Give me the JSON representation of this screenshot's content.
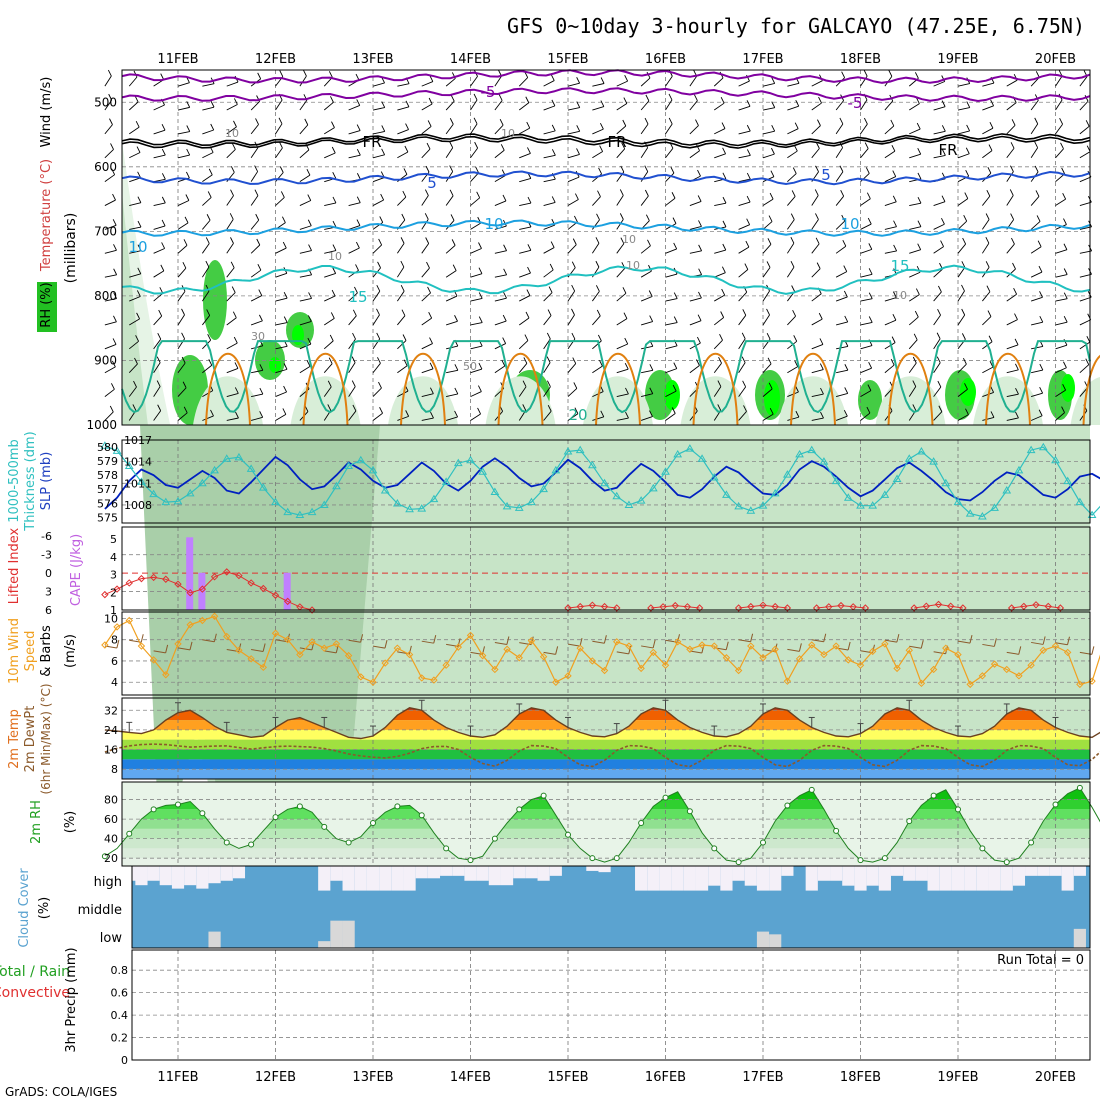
{
  "chart_data": {
    "type": "meteogram",
    "title": "GFS 0~10day 3-hourly for GALCAYO (47.25E, 6.75N)",
    "credit": "GrADS: COLA/IGES",
    "dates": [
      "11FEB",
      "12FEB",
      "13FEB",
      "14FEB",
      "15FEB",
      "16FEB",
      "17FEB",
      "18FEB",
      "19FEB",
      "20FEB"
    ],
    "colors": {
      "thickness": "#0020c0",
      "slp": "#30c0c0",
      "lifted": "#e03030",
      "cape": "#c080ff",
      "wind": "#f0a020",
      "rh_green": "#22c022",
      "cloud": "#5ba3d0"
    },
    "panels": [
      {
        "id": "upper_air",
        "labels": [
          "RH (%)",
          "Temperature (°C)",
          "Wind (m/s)",
          "(millibars)"
        ],
        "y_ticks": [
          "500",
          "600",
          "700",
          "800",
          "900",
          "1000"
        ],
        "isotherm_labels": [
          "-5",
          "-5",
          "FR",
          "FR",
          "FR",
          "5",
          "5",
          "10",
          "10",
          "10",
          "15",
          "15",
          "20"
        ],
        "rh_labels": [
          "10",
          "10",
          "10",
          "10",
          "30",
          "50",
          "10",
          "10"
        ]
      },
      {
        "id": "slp_thickness",
        "labels": [
          "1000-500mb",
          "Thickness (dm)",
          "SLP (mb)"
        ],
        "left_ticks": [
          "580",
          "579",
          "578",
          "577",
          "576",
          "575"
        ],
        "right_ticks": [
          "1017",
          "1014",
          "1011",
          "1008"
        ],
        "thickness_dm": [
          575.6,
          576.4,
          577.6,
          578.4,
          578.0,
          577.3,
          577.1,
          577.7,
          578.3,
          577.8,
          576.9,
          576.7,
          577.5,
          578.4,
          579.3,
          578.7,
          577.7,
          577.0,
          577.2,
          578.0,
          578.9,
          578.4,
          577.6,
          577.1,
          577.3,
          578.1,
          578.9,
          578.3,
          577.4,
          576.9,
          577.6,
          578.6,
          579.2,
          578.6,
          577.8,
          577.2,
          577.4,
          578.2,
          579.1,
          578.5,
          577.6,
          576.9,
          577.1,
          578.0,
          578.8,
          578.3,
          577.5,
          576.6,
          576.4,
          577.0,
          577.9,
          578.6,
          578.2,
          577.4,
          576.7,
          576.6,
          577.3,
          578.4,
          579.0,
          578.6,
          577.9,
          577.1,
          576.5,
          576.9,
          577.7,
          578.5,
          578.9,
          578.3,
          577.6,
          576.8,
          576.3,
          576.2,
          576.8,
          577.6,
          578.2,
          578.0,
          577.3,
          576.6,
          576.4,
          577.0,
          577.9,
          578.1,
          577.6
        ],
        "slp_mb": [
          1016.2,
          1015.5,
          1013.4,
          1011.2,
          1009.5,
          1008.4,
          1008.5,
          1009.6,
          1011.0,
          1012.8,
          1014.4,
          1014.6,
          1013.0,
          1010.4,
          1008.4,
          1007.0,
          1006.6,
          1007.0,
          1008.0,
          1010.6,
          1013.4,
          1014.2,
          1012.8,
          1010.0,
          1008.2,
          1007.4,
          1007.5,
          1008.8,
          1011.2,
          1013.8,
          1014.2,
          1012.6,
          1009.8,
          1007.8,
          1007.6,
          1008.4,
          1010.2,
          1012.8,
          1015.4,
          1015.6,
          1013.5,
          1011.0,
          1009.2,
          1008.0,
          1008.6,
          1010.3,
          1012.6,
          1015.0,
          1015.8,
          1014.4,
          1011.8,
          1009.4,
          1007.8,
          1007.2,
          1007.9,
          1009.6,
          1012.2,
          1015.0,
          1015.6,
          1014.0,
          1011.3,
          1009.0,
          1007.9,
          1007.9,
          1009.4,
          1011.6,
          1014.4,
          1015.4,
          1014.0,
          1011.0,
          1008.4,
          1006.8,
          1006.4,
          1007.6,
          1010.0,
          1012.8,
          1015.6,
          1016.0,
          1014.2,
          1011.3,
          1008.4,
          1006.6,
          1008.4
        ]
      },
      {
        "id": "lifted_cape",
        "labels": [
          "Lifted Index",
          "CAPE (J/kg)"
        ],
        "left_ticks": [
          "-6",
          "-3",
          "0",
          "3",
          "6"
        ],
        "right_ticks": [
          "5",
          "4",
          "3",
          "2",
          "1"
        ],
        "lifted_index": [
          3.5,
          2.6,
          1.6,
          0.9,
          0.7,
          1.0,
          1.8,
          3.2,
          2.6,
          0.6,
          -0.2,
          0.4,
          1.6,
          2.5,
          3.6,
          4.6,
          5.5,
          6.0
        ],
        "cape_bars": [
          {
            "t": 7,
            "v": 5.1
          },
          {
            "t": 8,
            "v": 3.1
          },
          {
            "t": 15,
            "v": 3.1
          }
        ]
      },
      {
        "id": "wind_10m",
        "labels": [
          "10m Wind",
          "Speed",
          "& Barbs",
          "(m/s)"
        ],
        "y_ticks": [
          "10",
          "8",
          "6",
          "4"
        ],
        "speed_ms": [
          7.5,
          9.2,
          9.8,
          7.4,
          6.1,
          4.7,
          7.6,
          9.4,
          9.8,
          10.2,
          8.3,
          7.0,
          6.2,
          5.4,
          8.6,
          8.0,
          6.6,
          7.8,
          7.2,
          7.6,
          6.5,
          4.5,
          4.0,
          5.8,
          7.2,
          6.6,
          4.4,
          4.2,
          5.6,
          7.3,
          8.4,
          6.5,
          5.2,
          7.1,
          6.3,
          7.9,
          6.4,
          4.0,
          4.6,
          7.2,
          6.0,
          5.1,
          7.8,
          7.4,
          5.3,
          6.8,
          5.6,
          7.8,
          7.1,
          7.5,
          7.4,
          6.3,
          5.1,
          7.4,
          6.3,
          7.1,
          4.1,
          6.2,
          7.5,
          6.6,
          7.4,
          6.1,
          5.6,
          6.9,
          7.6,
          5.3,
          7.0,
          3.9,
          5.2,
          7.2,
          6.6,
          3.8,
          4.6,
          5.7,
          5.2,
          4.6,
          5.6,
          7.0,
          7.4,
          6.8,
          3.8,
          4.1,
          7.7
        ]
      },
      {
        "id": "temp_2m",
        "labels": [
          "2m Temp",
          "2m DewPt",
          "(6hr Min/Max) (°C)"
        ],
        "y_ticks": [
          "32",
          "24",
          "16",
          "8"
        ],
        "temp_c": [
          24,
          23.5,
          23,
          22.5,
          24,
          28,
          31,
          32,
          29,
          25.5,
          23,
          22,
          21,
          21.5,
          25,
          28,
          29,
          27,
          25,
          23,
          21,
          20.5,
          21.5,
          25,
          30,
          33,
          32,
          28,
          25,
          23,
          21.5,
          21,
          22,
          25.5,
          30.5,
          33,
          32,
          28,
          25,
          23,
          21.5,
          21.2,
          22.5,
          25.5,
          30.5,
          33,
          32,
          28,
          25,
          23,
          21.5,
          21.2,
          22.5,
          25.5,
          30.5,
          33,
          32,
          28,
          25,
          23,
          21.5,
          21.2,
          22.5,
          25.5,
          30.5,
          33,
          32,
          28,
          25,
          23,
          21.5,
          21.2,
          22.5,
          25.5,
          30.5,
          33,
          32,
          28,
          25,
          23,
          21.5,
          21,
          24
        ],
        "dewpt_c": [
          15,
          16.5,
          17.5,
          18,
          18.2,
          18,
          17.5,
          17,
          17.2,
          17.4,
          17.5,
          16.8,
          16.2,
          16.7,
          17.2,
          17.4,
          17.2,
          17.0,
          16.4,
          15.4,
          14.2,
          13.4,
          12.9,
          12.6,
          13.2,
          14.5,
          16.4,
          17.2,
          17.3,
          16,
          12.8,
          10.3,
          9.2,
          11.6,
          15.4,
          17.6,
          17.4,
          16.4,
          12.8,
          9.8,
          9.1,
          11.6,
          15.7,
          17.6,
          17.4,
          16.4,
          12.8,
          9.8,
          9.1,
          11.6,
          15.7,
          17.6,
          17.4,
          16.4,
          12.8,
          9.8,
          9.1,
          11.6,
          15.7,
          17.6,
          17.4,
          16.4,
          12.8,
          9.8,
          9.1,
          11.6,
          15.7,
          17.6,
          17.4,
          16.4,
          12.8,
          9.8,
          9.1,
          11.6,
          15.7,
          17.6,
          17.4,
          16.4,
          12.8,
          9.8,
          9.4,
          12.0,
          16.5
        ]
      },
      {
        "id": "rh_2m",
        "labels": [
          "2m RH",
          "(%)"
        ],
        "y_ticks": [
          "80",
          "60",
          "40",
          "20"
        ],
        "rh_pct": [
          22,
          30,
          45,
          60,
          70,
          74,
          75,
          78,
          66,
          50,
          36,
          30,
          34,
          48,
          62,
          70,
          73,
          67,
          52,
          40,
          36,
          42,
          56,
          67,
          73,
          74,
          64,
          46,
          30,
          20,
          18,
          22,
          40,
          56,
          70,
          80,
          84,
          64,
          44,
          30,
          20,
          16,
          20,
          36,
          56,
          73,
          82,
          88,
          68,
          46,
          30,
          18,
          16,
          20,
          36,
          58,
          74,
          84,
          90,
          70,
          48,
          30,
          18,
          16,
          20,
          36,
          58,
          74,
          84,
          90,
          70,
          48,
          30,
          18,
          16,
          20,
          36,
          58,
          75,
          86,
          92,
          72,
          50
        ]
      },
      {
        "id": "cloud",
        "labels": [
          "Cloud Cover",
          "(%)"
        ],
        "levels": [
          "high",
          "middle",
          "low"
        ],
        "high_pct": [
          0,
          0,
          60,
          78,
          60,
          78,
          92,
          78,
          92,
          70,
          60,
          50,
          0,
          0,
          0,
          0,
          0,
          0,
          100,
          60,
          100,
          100,
          100,
          100,
          100,
          100,
          50,
          50,
          40,
          40,
          60,
          60,
          78,
          78,
          50,
          50,
          60,
          40,
          0,
          0,
          20,
          25,
          0,
          0,
          100,
          100,
          100,
          100,
          100,
          100,
          80,
          100,
          60,
          80,
          100,
          100,
          40,
          0,
          100,
          60,
          60,
          80,
          100,
          80,
          100,
          40,
          60,
          60,
          100,
          100,
          100,
          100,
          100,
          100,
          100,
          80,
          40,
          40,
          40,
          100,
          40,
          0,
          0
        ],
        "low_pct": [
          0,
          0,
          0,
          0,
          0,
          0,
          0,
          0,
          0,
          60,
          0,
          0,
          0,
          0,
          0,
          0,
          0,
          0,
          25,
          100,
          100,
          0,
          0,
          0,
          0,
          0,
          0,
          0,
          0,
          0,
          0,
          0,
          0,
          0,
          0,
          0,
          0,
          0,
          0,
          0,
          0,
          0,
          0,
          0,
          0,
          0,
          0,
          0,
          0,
          0,
          0,
          0,
          0,
          0,
          60,
          50,
          0,
          0,
          0,
          0,
          0,
          0,
          0,
          0,
          0,
          0,
          0,
          0,
          0,
          0,
          0,
          0,
          0,
          0,
          0,
          0,
          0,
          0,
          0,
          0,
          70,
          0,
          0
        ]
      },
      {
        "id": "precip",
        "labels": [
          "Total / Rain",
          "Convective",
          "3hr Precip (mm)"
        ],
        "y_ticks": [
          "0.8",
          "0.6",
          "0.4",
          "0.2",
          "0"
        ],
        "run_total": "Run Total = 0"
      }
    ]
  }
}
